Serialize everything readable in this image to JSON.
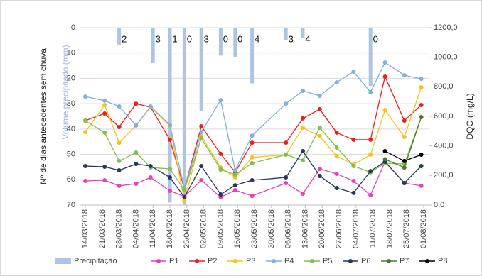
{
  "chart_data": {
    "type": "line",
    "y_label": "Nº de dias antecedentes sem chuva",
    "y_label_2": "Volume precipitado (mm)",
    "y2_label": "DQO (mg/L)",
    "ylim": [
      0,
      70
    ],
    "yticks": [
      0,
      10,
      20,
      30,
      40,
      50,
      60,
      70
    ],
    "y_inverted": true,
    "y2lim": [
      0,
      1200
    ],
    "y2ticks": [
      {
        "value": 0,
        "label": "0,0"
      },
      {
        "value": 200,
        "label": "200,0"
      },
      {
        "value": 400,
        "label": "400,0"
      },
      {
        "value": 600,
        "label": "600,0"
      },
      {
        "value": 800,
        "label": "800,0"
      },
      {
        "value": 1000,
        "label": "1000,0"
      },
      {
        "value": 1200,
        "label": "1200,0"
      }
    ],
    "xticks": [
      "14/03/2018",
      "21/03/2018",
      "28/03/2018",
      "04/04/2018",
      "11/04/2018",
      "18/04/2018",
      "25/04/2018",
      "02/05/2018",
      "09/05/2018",
      "16/05/2018",
      "23/05/2018",
      "30/05/2018",
      "06/06/2018",
      "13/06/2018",
      "20/06/2018",
      "27/06/2018",
      "04/07/2018",
      "11/07/2018",
      "18/07/2018",
      "25/07/2018",
      "01/08/2018"
    ],
    "grid": true,
    "legend": "bottom",
    "x": [
      "14/03/2018",
      "22/03/2018",
      "28/03/2018",
      "04/04/2018",
      "10/04/2018",
      "18/04/2018",
      "24/04/2018",
      "01/05/2018",
      "09/05/2018",
      "15/05/2018",
      "22/05/2018",
      "05/06/2018",
      "12/06/2018",
      "19/06/2018",
      "26/06/2018",
      "03/07/2018",
      "10/07/2018",
      "16/07/2018",
      "24/07/2018",
      "31/07/2018"
    ],
    "precipitation": {
      "name": "Precipitação",
      "type": "bar",
      "color": "#adc4e3",
      "x": [
        "28/03/2018",
        "11/04/2018",
        "18/04/2018",
        "24/04/2018",
        "01/05/2018",
        "09/05/2018",
        "15/05/2018",
        "22/05/2018",
        "05/06/2018",
        "12/06/2018",
        "10/07/2018"
      ],
      "values": [
        6.7,
        14,
        69,
        70,
        33,
        11,
        11.5,
        22,
        5,
        4,
        23
      ],
      "dry_days": [
        2,
        3,
        1,
        0,
        3,
        0,
        0,
        4,
        3,
        4,
        0
      ]
    },
    "series": [
      {
        "name": "P1",
        "color": "#e83fbf",
        "axis": "y2",
        "values": [
          163,
          168,
          130,
          144,
          187,
          96,
          58,
          168,
          53,
          101,
          62,
          149,
          77,
          245,
          211,
          163,
          67,
          293,
          149,
          130
        ]
      },
      {
        "name": "P2",
        "color": "#e8201c",
        "axis": "y2",
        "values": [
          571,
          619,
          528,
          686,
          662,
          442,
          110,
          533,
          346,
          221,
          422,
          422,
          586,
          648,
          490,
          442,
          442,
          869,
          571,
          677
        ]
      },
      {
        "name": "P3",
        "color": "#f7c31a",
        "axis": "y2",
        "values": [
          494,
          677,
          422,
          538,
          662,
          533,
          29,
          466,
          254,
          187,
          322,
          341,
          523,
          466,
          331,
          274,
          341,
          643,
          461,
          797
        ]
      },
      {
        "name": "P4",
        "color": "#7fb0de",
        "axis": "y2",
        "values": [
          734,
          706,
          667,
          538,
          667,
          542,
          110,
          494,
          710,
          235,
          470,
          686,
          773,
          739,
          830,
          902,
          763,
          965,
          878,
          854
        ]
      },
      {
        "name": "P5",
        "color": "#7fbf4a",
        "axis": "y2",
        "values": [
          571,
          490,
          298,
          355,
          254,
          245,
          101,
          451,
          240,
          206,
          283,
          341,
          302,
          523,
          389,
          264,
          221,
          283,
          278,
          595
        ]
      },
      {
        "name": "P6",
        "color": "#23395e",
        "axis": "y2",
        "values": [
          264,
          259,
          235,
          278,
          264,
          187,
          53,
          264,
          72,
          134,
          168,
          187,
          365,
          197,
          115,
          82,
          230,
          293,
          149,
          264
        ]
      },
      {
        "name": "P7",
        "color": "#4b7a2a",
        "axis": "y2",
        "values": [
          null,
          null,
          null,
          null,
          null,
          null,
          null,
          null,
          null,
          null,
          null,
          null,
          null,
          null,
          null,
          null,
          null,
          310,
          254,
          595
        ]
      },
      {
        "name": "P8",
        "color": "#000000",
        "axis": "y2",
        "values": [
          null,
          null,
          null,
          null,
          null,
          null,
          null,
          null,
          null,
          null,
          null,
          null,
          null,
          null,
          null,
          null,
          null,
          365,
          298,
          341
        ]
      }
    ]
  }
}
